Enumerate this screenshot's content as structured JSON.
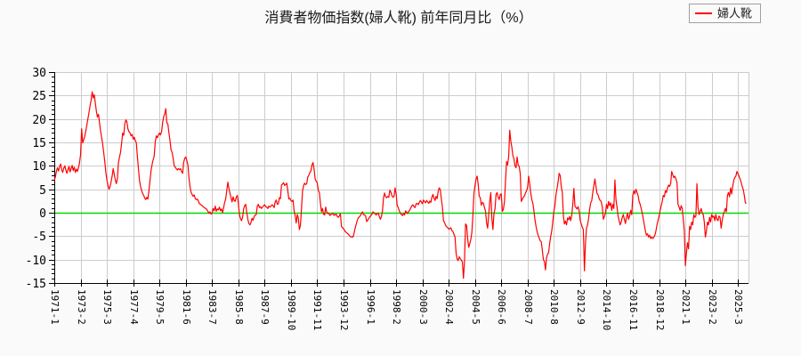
{
  "title": "消費者物価指数(婦人靴) 前年同月比（%）",
  "legend": {
    "label": "婦人靴",
    "sample_color": "#ff0000"
  },
  "chart_data": {
    "type": "line",
    "title": "消費者物価指数(婦人靴) 前年同月比（%）",
    "unit": "%",
    "ylim": [
      -15,
      30
    ],
    "y_tick_step": 5,
    "y_minor_step": 1,
    "y_tick_labels": [
      "-15",
      "-10",
      "-5",
      "0",
      "5",
      "10",
      "15",
      "20",
      "25",
      "30"
    ],
    "grid": true,
    "legend_position": "top-right",
    "zero_line_value": 0,
    "colors": {
      "line": "#ff0000",
      "zero_line": "#00dd00",
      "grid": "#cccccc",
      "axis": "#000000",
      "plot_background": "#ffffff"
    },
    "x_domain_months": 660,
    "x_ticks": [
      {
        "month": 0,
        "label": "1971-1"
      },
      {
        "month": 25,
        "label": "1973-2"
      },
      {
        "month": 50,
        "label": "1975-3"
      },
      {
        "month": 75,
        "label": "1977-4"
      },
      {
        "month": 100,
        "label": "1979-5"
      },
      {
        "month": 125,
        "label": "1981-6"
      },
      {
        "month": 150,
        "label": "1983-7"
      },
      {
        "month": 175,
        "label": "1985-8"
      },
      {
        "month": 200,
        "label": "1987-9"
      },
      {
        "month": 225,
        "label": "1989-10"
      },
      {
        "month": 250,
        "label": "1991-11"
      },
      {
        "month": 275,
        "label": "1993-12"
      },
      {
        "month": 300,
        "label": "1996-1"
      },
      {
        "month": 325,
        "label": "1998-2"
      },
      {
        "month": 350,
        "label": "2000-3"
      },
      {
        "month": 375,
        "label": "2002-4"
      },
      {
        "month": 400,
        "label": "2004-5"
      },
      {
        "month": 425,
        "label": "2006-6"
      },
      {
        "month": 450,
        "label": "2008-7"
      },
      {
        "month": 475,
        "label": "2010-8"
      },
      {
        "month": 500,
        "label": "2012-9"
      },
      {
        "month": 525,
        "label": "2014-10"
      },
      {
        "month": 550,
        "label": "2016-11"
      },
      {
        "month": 575,
        "label": "2018-12"
      },
      {
        "month": 600,
        "label": "2021-1"
      },
      {
        "month": 625,
        "label": "2023-2"
      },
      {
        "month": 650,
        "label": "2025-3"
      }
    ],
    "series": [
      {
        "name": "婦人靴",
        "color": "#ff0000",
        "start_label": "1971-1",
        "frequency": "monthly",
        "values": [
          6.9,
          7.6,
          8.8,
          9.6,
          8.9,
          9.8,
          10.4,
          9.2,
          8.6,
          9.5,
          10.0,
          9.1,
          8.4,
          9.2,
          9.9,
          8.7,
          9.4,
          10.1,
          9.0,
          9.7,
          8.6,
          9.3,
          8.8,
          9.6,
          10.7,
          12.4,
          17.9,
          14.9,
          15.6,
          16.3,
          17.5,
          18.8,
          20.1,
          21.4,
          22.8,
          24.0,
          25.8,
          24.5,
          25.2,
          23.4,
          21.7,
          20.4,
          21.0,
          19.2,
          17.4,
          16.1,
          14.6,
          12.8,
          10.9,
          8.6,
          7.0,
          5.9,
          5.0,
          5.5,
          6.6,
          7.8,
          9.4,
          8.2,
          7.0,
          6.2,
          7.3,
          10.7,
          11.9,
          12.9,
          14.8,
          17.0,
          16.5,
          18.9,
          19.8,
          19.4,
          17.9,
          17.3,
          17.0,
          16.4,
          16.7,
          15.7,
          16.1,
          15.4,
          14.9,
          12.0,
          9.4,
          6.9,
          5.6,
          4.8,
          4.1,
          3.7,
          3.1,
          2.8,
          3.3,
          2.9,
          4.7,
          6.9,
          9.0,
          10.3,
          11.3,
          12.1,
          15.1,
          16.4,
          16.0,
          16.6,
          17.0,
          16.6,
          17.3,
          19.2,
          20.5,
          21.1,
          22.2,
          19.2,
          18.9,
          17.0,
          15.4,
          13.4,
          12.9,
          11.6,
          10.0,
          9.7,
          9.4,
          9.1,
          9.4,
          9.2,
          9.4,
          8.8,
          8.4,
          10.7,
          11.6,
          11.9,
          11.1,
          10.3,
          7.5,
          5.6,
          4.4,
          3.9,
          3.5,
          3.8,
          3.0,
          2.8,
          2.9,
          2.5,
          1.9,
          1.8,
          1.6,
          1.4,
          1.2,
          1.0,
          0.9,
          0.7,
          0.3,
          -0.1,
          0.2,
          -0.3,
          -0.1,
          0.9,
          0.4,
          1.4,
          0.3,
          0.8,
          0.6,
          1.2,
          0.4,
          0.8,
          0.0,
          1.1,
          2.2,
          3.0,
          4.8,
          6.5,
          5.2,
          4.2,
          3.2,
          2.3,
          3.4,
          2.6,
          2.4,
          3.3,
          3.7,
          2.1,
          -0.4,
          -1.2,
          -1.7,
          -1.0,
          0.8,
          1.5,
          1.8,
          0.0,
          -1.4,
          -2.3,
          -2.6,
          -2.1,
          -1.2,
          -1.6,
          -0.8,
          -0.5,
          -0.4,
          1.4,
          1.8,
          1.1,
          1.3,
          0.9,
          1.2,
          1.5,
          1.7,
          1.3,
          1.2,
          0.9,
          1.4,
          1.2,
          1.4,
          1.7,
          1.5,
          1.1,
          2.3,
          2.7,
          1.8,
          1.9,
          3.2,
          3.0,
          5.9,
          6.1,
          6.4,
          5.8,
          6.0,
          6.3,
          4.7,
          2.9,
          3.1,
          2.6,
          2.4,
          2.7,
          0.4,
          -0.6,
          -2.2,
          -0.4,
          -1.1,
          -3.6,
          -2.7,
          0.8,
          4.6,
          5.8,
          6.3,
          6.0,
          6.2,
          7.6,
          8.0,
          8.6,
          8.9,
          10.2,
          10.7,
          9.3,
          7.2,
          6.7,
          6.4,
          4.8,
          4.3,
          2.1,
          0.2,
          0.9,
          -0.3,
          -0.5,
          1.2,
          0.2,
          -0.2,
          -0.1,
          -0.6,
          -0.4,
          -0.3,
          -0.1,
          -0.6,
          -0.4,
          -0.3,
          -0.8,
          -1.0,
          -0.7,
          -0.2,
          -2.9,
          -3.2,
          -3.4,
          -3.8,
          -4.1,
          -4.3,
          -4.5,
          -4.7,
          -5.0,
          -5.2,
          -5.1,
          -5.2,
          -4.4,
          -3.3,
          -2.5,
          -1.7,
          -1.1,
          -0.9,
          -0.6,
          -0.2,
          0.2,
          -0.4,
          -0.5,
          -0.7,
          -1.9,
          -1.6,
          -1.2,
          -0.9,
          -0.6,
          -0.3,
          0.2,
          -0.1,
          -0.2,
          -0.5,
          -0.2,
          -0.1,
          -0.8,
          -1.4,
          -0.8,
          0.3,
          3.2,
          4.2,
          3.4,
          3.2,
          3.5,
          3.3,
          4.8,
          4.4,
          3.6,
          3.3,
          3.5,
          5.3,
          4.0,
          1.6,
          1.1,
          0.4,
          -0.1,
          -0.4,
          -0.6,
          -0.2,
          -0.5,
          0.4,
          0.1,
          -0.2,
          0.3,
          0.6,
          1.1,
          1.5,
          1.7,
          1.3,
          1.1,
          1.9,
          2.0,
          1.7,
          2.2,
          2.6,
          2.3,
          1.9,
          2.7,
          2.4,
          2.1,
          2.6,
          2.3,
          2.0,
          2.5,
          2.2,
          3.3,
          3.9,
          3.1,
          2.6,
          3.5,
          3.0,
          4.6,
          5.3,
          4.9,
          2.9,
          1.2,
          -1.7,
          -2.1,
          -2.7,
          -3.0,
          -3.2,
          -3.5,
          -3.4,
          -3.2,
          -3.8,
          -4.0,
          -4.6,
          -5.2,
          -8.6,
          -9.9,
          -10.2,
          -9.4,
          -9.8,
          -10.1,
          -10.5,
          -14.0,
          -10.4,
          -2.4,
          -2.7,
          -5.5,
          -7.4,
          -6.6,
          -5.7,
          -4.2,
          -0.5,
          4.2,
          5.8,
          7.2,
          7.8,
          6.1,
          3.5,
          3.2,
          1.6,
          2.2,
          2.0,
          1.1,
          0.3,
          -2.2,
          -3.3,
          -0.5,
          2.4,
          4.3,
          -1.2,
          -3.6,
          -0.2,
          0.8,
          3.9,
          4.3,
          3.3,
          2.8,
          3.9,
          4.0,
          0.3,
          0.7,
          2.4,
          6.8,
          10.9,
          10.2,
          12.0,
          17.6,
          15.3,
          14.0,
          12.2,
          11.5,
          10.0,
          9.6,
          11.9,
          10.2,
          9.9,
          8.3,
          2.4,
          2.9,
          3.3,
          3.6,
          4.2,
          4.7,
          5.4,
          7.8,
          6.1,
          4.2,
          2.8,
          2.0,
          0.4,
          -1.5,
          -2.9,
          -4.0,
          -4.8,
          -5.4,
          -6.0,
          -6.2,
          -8.0,
          -10.0,
          -10.4,
          -12.2,
          -9.6,
          -8.8,
          -8.5,
          -6.5,
          -5.0,
          -3.8,
          -1.8,
          0.3,
          1.6,
          3.9,
          5.2,
          6.6,
          8.4,
          7.9,
          5.6,
          4.3,
          -0.6,
          -2.4,
          -1.8,
          -2.6,
          -1.1,
          -1.5,
          -0.8,
          -1.7,
          -0.5,
          1.9,
          5.2,
          1.4,
          1.1,
          0.8,
          1.3,
          0.4,
          -1.6,
          -2.4,
          -3.1,
          -3.6,
          -12.4,
          -6.5,
          -3.3,
          -2.6,
          -1.2,
          0.8,
          2.1,
          2.6,
          4.4,
          5.8,
          7.2,
          5.6,
          4.1,
          3.8,
          3.0,
          2.6,
          2.4,
          1.2,
          -1.4,
          -0.8,
          -0.1,
          1.8,
          0.9,
          2.4,
          1.5,
          2.1,
          0.5,
          1.8,
          0.9,
          7.0,
          2.8,
          1.2,
          -0.7,
          -1.7,
          -2.6,
          -2.0,
          -1.0,
          -0.4,
          -1.4,
          -2.3,
          -1.0,
          -0.1,
          -1.4,
          -0.7,
          0.5,
          -0.4,
          3.7,
          4.7,
          4.0,
          5.0,
          4.3,
          3.7,
          2.4,
          1.8,
          0.9,
          -0.1,
          -1.4,
          -2.6,
          -3.9,
          -4.8,
          -4.5,
          -5.2,
          -4.8,
          -5.5,
          -5.2,
          -5.5,
          -5.2,
          -4.8,
          -3.9,
          -2.6,
          -1.7,
          -0.7,
          0.5,
          1.5,
          2.4,
          3.7,
          3.4,
          4.7,
          4.3,
          5.3,
          5.9,
          5.6,
          6.2,
          8.8,
          8.1,
          7.5,
          7.8,
          7.2,
          6.5,
          1.8,
          1.2,
          0.5,
          1.5,
          0.9,
          -1.4,
          -3.9,
          -11.3,
          -8.6,
          -6.4,
          -7.7,
          -2.9,
          -3.6,
          -2.0,
          -2.6,
          -0.4,
          -1.0,
          -0.7,
          6.2,
          1.2,
          -0.4,
          0.2,
          0.9,
          -0.1,
          -0.4,
          -2.0,
          -5.2,
          -3.9,
          -2.0,
          -2.6,
          -1.0,
          -2.0,
          -0.4,
          -1.0,
          -0.7,
          -1.7,
          -0.4,
          -1.4,
          -1.7,
          -0.7,
          -1.0,
          -3.3,
          -1.7,
          -0.4,
          0.2,
          0.9,
          0.2,
          3.7,
          4.3,
          3.4,
          5.3,
          4.0,
          5.6,
          6.9,
          7.5,
          7.8,
          8.8,
          8.3,
          7.8,
          7.2,
          6.5,
          5.6,
          5.0,
          3.7,
          2.1,
          2.0
        ]
      }
    ]
  }
}
